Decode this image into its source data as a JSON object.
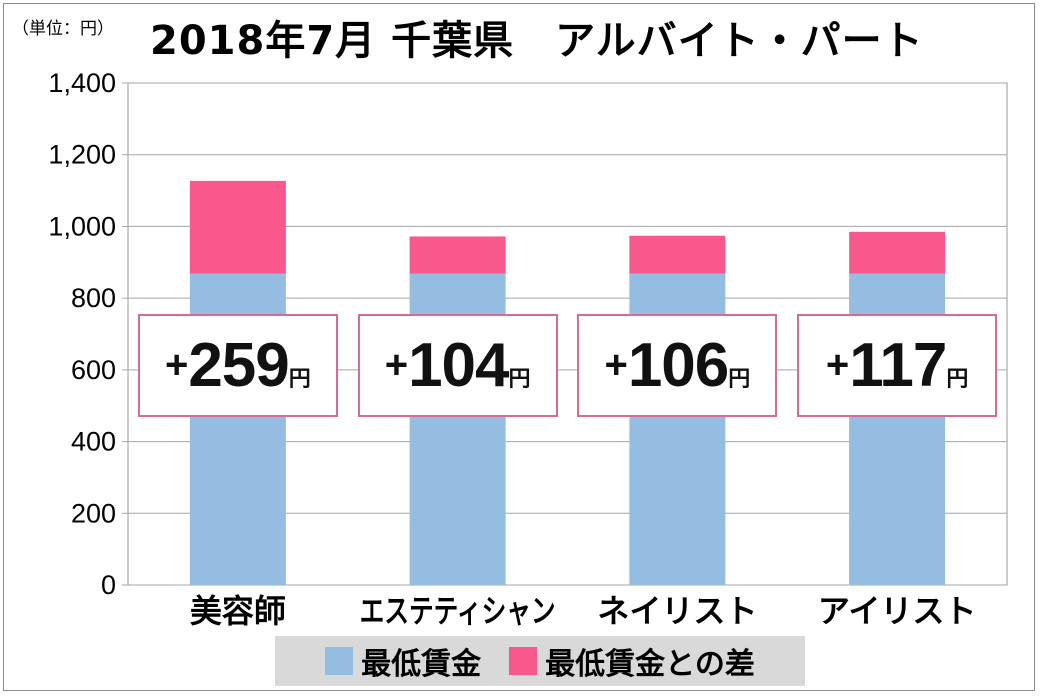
{
  "chart_data": {
    "type": "bar",
    "stacked": true,
    "title": "2018年7月 千葉県　アルバイト・パート",
    "unit_label": "（単位：円）",
    "categories": [
      "美容師",
      "エステティシャン",
      "ネイリスト",
      "アイリスト"
    ],
    "series": [
      {
        "name": "最低賃金",
        "color": "#95bde1",
        "values": [
          868,
          868,
          868,
          868
        ]
      },
      {
        "name": "最低賃金との差",
        "color": "#f9588c",
        "values": [
          259,
          104,
          106,
          117
        ]
      }
    ],
    "annotations": [
      {
        "sign": "+",
        "number": "259",
        "unit": "円"
      },
      {
        "sign": "+",
        "number": "104",
        "unit": "円"
      },
      {
        "sign": "+",
        "number": "106",
        "unit": "円"
      },
      {
        "sign": "+",
        "number": "117",
        "unit": "円"
      }
    ],
    "ylim": [
      0,
      1400
    ],
    "yticks": [
      0,
      200,
      400,
      600,
      800,
      1000,
      1200,
      1400
    ],
    "ytick_labels": [
      "0",
      "200",
      "400",
      "600",
      "800",
      "1,000",
      "1,200",
      "1,400"
    ],
    "grid": true,
    "legend_position": "bottom"
  }
}
